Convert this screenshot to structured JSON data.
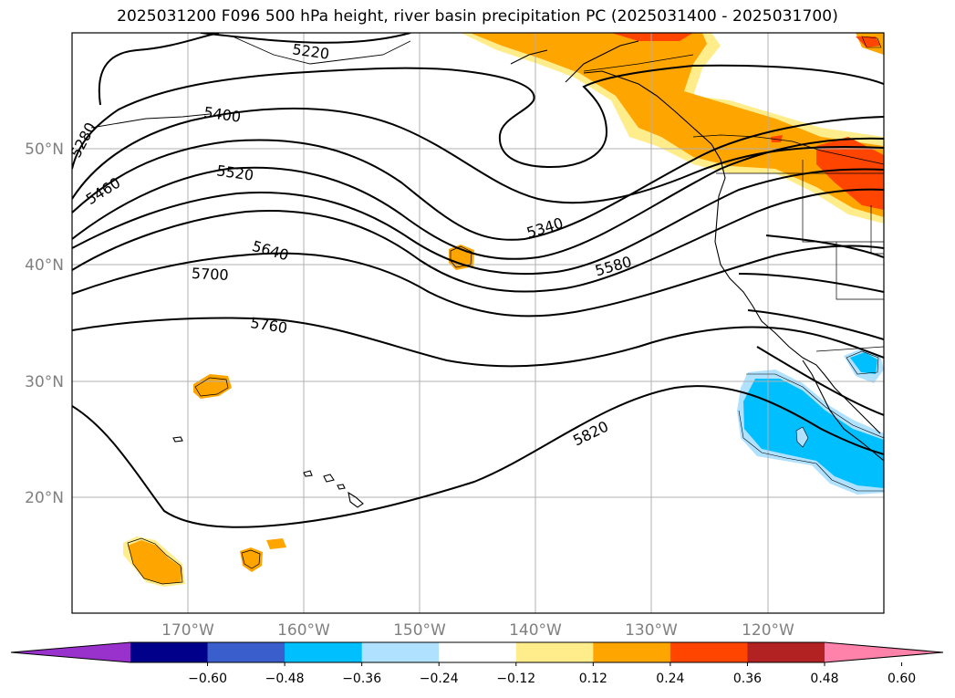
{
  "title": "2025031200 F096 500 hPa height, river basin precipitation PC (2025031400 - 2025031700)",
  "map": {
    "lat_labels": [
      "50°N",
      "40°N",
      "30°N",
      "20°N"
    ],
    "lon_labels": [
      "170°W",
      "160°W",
      "150°W",
      "140°W",
      "130°W",
      "120°W"
    ],
    "contour_labels": [
      "5220",
      "5280",
      "5400",
      "5460",
      "5520",
      "5640",
      "5700",
      "5760",
      "5340",
      "5580",
      "5820"
    ]
  },
  "colorbar": {
    "ticks": [
      "−0.60",
      "−0.48",
      "−0.36",
      "−0.24",
      "−0.12",
      "0.12",
      "0.24",
      "0.36",
      "0.48",
      "0.60"
    ],
    "colors": [
      "#9932cc",
      "#00008b",
      "#3a5fcd",
      "#00bfff",
      "#b0e2ff",
      "#ffffff",
      "#ffec8b",
      "#ffa500",
      "#ff4500",
      "#b22222",
      "#ff82ab"
    ]
  }
}
